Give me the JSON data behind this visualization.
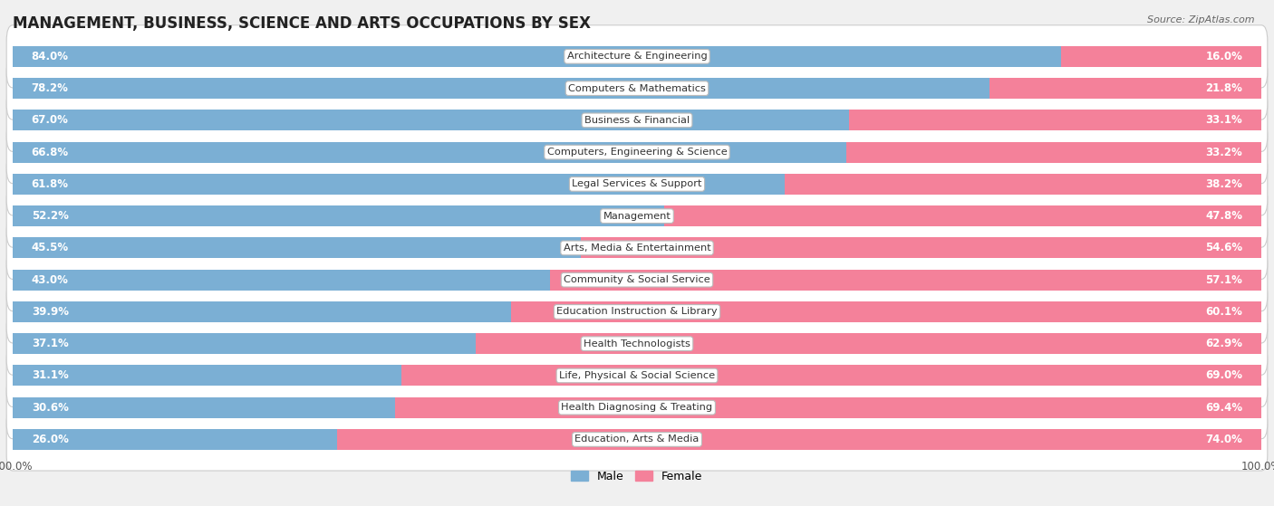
{
  "title": "MANAGEMENT, BUSINESS, SCIENCE AND ARTS OCCUPATIONS BY SEX",
  "source": "Source: ZipAtlas.com",
  "categories": [
    "Architecture & Engineering",
    "Computers & Mathematics",
    "Business & Financial",
    "Computers, Engineering & Science",
    "Legal Services & Support",
    "Management",
    "Arts, Media & Entertainment",
    "Community & Social Service",
    "Education Instruction & Library",
    "Health Technologists",
    "Life, Physical & Social Science",
    "Health Diagnosing & Treating",
    "Education, Arts & Media"
  ],
  "male": [
    84.0,
    78.2,
    67.0,
    66.8,
    61.8,
    52.2,
    45.5,
    43.0,
    39.9,
    37.1,
    31.1,
    30.6,
    26.0
  ],
  "female": [
    16.0,
    21.8,
    33.1,
    33.2,
    38.2,
    47.8,
    54.6,
    57.1,
    60.1,
    62.9,
    69.0,
    69.4,
    74.0
  ],
  "male_color": "#7bafd4",
  "female_color": "#f4819a",
  "background_color": "#f0f0f0",
  "bar_background": "#ffffff",
  "title_fontsize": 12,
  "label_fontsize": 8.5,
  "tick_fontsize": 8.5
}
